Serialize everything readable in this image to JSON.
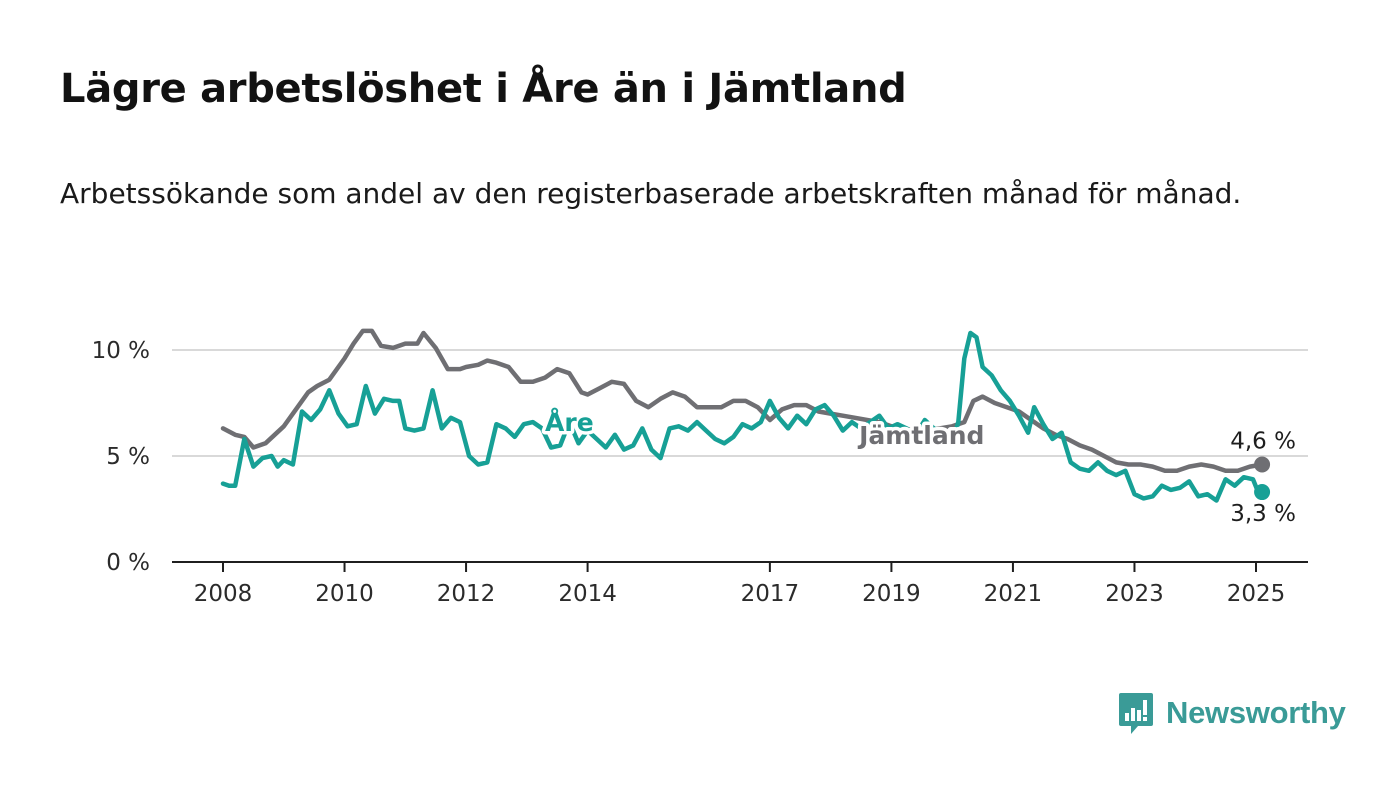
{
  "header": {
    "title": "Lägre arbetslöshet i Åre än i Jämtland",
    "subtitle": "Arbetssökande som andel av den registerbaserade arbetskraften månad för månad."
  },
  "brand": {
    "name": "Newsworthy",
    "icon": "newsworthy-logo-icon",
    "color": "#3a9b97"
  },
  "chart_data": {
    "type": "line",
    "ylim": [
      0,
      10
    ],
    "yticks": [
      0,
      5,
      10
    ],
    "ytick_labels": [
      "0 %",
      "5 %",
      "10 %"
    ],
    "xticks": [
      2008,
      2010,
      2012,
      2014,
      2017,
      2019,
      2021,
      2023,
      2025
    ],
    "xtick_labels": [
      "2008",
      "2010",
      "2012",
      "2014",
      "2017",
      "2019",
      "2021",
      "2023",
      "2025"
    ],
    "grid": true,
    "series": [
      {
        "name": "Jämtland",
        "color": "#6f6f73",
        "end_label": "4,6 %",
        "points": [
          [
            2008.0,
            6.3
          ],
          [
            2008.2,
            6.0
          ],
          [
            2008.35,
            5.9
          ],
          [
            2008.5,
            5.4
          ],
          [
            2008.7,
            5.6
          ],
          [
            2009.0,
            6.4
          ],
          [
            2009.2,
            7.2
          ],
          [
            2009.4,
            8.0
          ],
          [
            2009.55,
            8.3
          ],
          [
            2009.75,
            8.6
          ],
          [
            2010.0,
            9.6
          ],
          [
            2010.15,
            10.3
          ],
          [
            2010.3,
            10.9
          ],
          [
            2010.45,
            10.9
          ],
          [
            2010.6,
            10.2
          ],
          [
            2010.8,
            10.1
          ],
          [
            2011.0,
            10.3
          ],
          [
            2011.2,
            10.3
          ],
          [
            2011.3,
            10.8
          ],
          [
            2011.5,
            10.1
          ],
          [
            2011.7,
            9.1
          ],
          [
            2011.9,
            9.1
          ],
          [
            2012.0,
            9.2
          ],
          [
            2012.2,
            9.3
          ],
          [
            2012.35,
            9.5
          ],
          [
            2012.5,
            9.4
          ],
          [
            2012.7,
            9.2
          ],
          [
            2012.9,
            8.5
          ],
          [
            2013.1,
            8.5
          ],
          [
            2013.3,
            8.7
          ],
          [
            2013.5,
            9.1
          ],
          [
            2013.7,
            8.9
          ],
          [
            2013.9,
            8.0
          ],
          [
            2014.0,
            7.9
          ],
          [
            2014.2,
            8.2
          ],
          [
            2014.4,
            8.5
          ],
          [
            2014.6,
            8.4
          ],
          [
            2014.8,
            7.6
          ],
          [
            2015.0,
            7.3
          ],
          [
            2015.2,
            7.7
          ],
          [
            2015.4,
            8.0
          ],
          [
            2015.6,
            7.8
          ],
          [
            2015.8,
            7.3
          ],
          [
            2016.0,
            7.3
          ],
          [
            2016.2,
            7.3
          ],
          [
            2016.4,
            7.6
          ],
          [
            2016.6,
            7.6
          ],
          [
            2016.8,
            7.3
          ],
          [
            2017.0,
            6.7
          ],
          [
            2017.2,
            7.2
          ],
          [
            2017.4,
            7.4
          ],
          [
            2017.6,
            7.4
          ],
          [
            2017.8,
            7.1
          ],
          [
            2018.0,
            7.0
          ],
          [
            2018.2,
            6.9
          ],
          [
            2018.4,
            6.8
          ],
          [
            2018.6,
            6.7
          ],
          [
            2018.8,
            6.6
          ],
          [
            2019.0,
            6.4
          ],
          [
            2019.2,
            6.3
          ],
          [
            2019.4,
            6.2
          ],
          [
            2019.6,
            6.2
          ],
          [
            2019.8,
            6.3
          ],
          [
            2020.0,
            6.4
          ],
          [
            2020.2,
            6.6
          ],
          [
            2020.35,
            7.6
          ],
          [
            2020.5,
            7.8
          ],
          [
            2020.7,
            7.5
          ],
          [
            2020.9,
            7.3
          ],
          [
            2021.1,
            7.1
          ],
          [
            2021.3,
            6.7
          ],
          [
            2021.5,
            6.3
          ],
          [
            2021.7,
            6.0
          ],
          [
            2021.9,
            5.8
          ],
          [
            2022.1,
            5.5
          ],
          [
            2022.3,
            5.3
          ],
          [
            2022.5,
            5.0
          ],
          [
            2022.7,
            4.7
          ],
          [
            2022.9,
            4.6
          ],
          [
            2023.1,
            4.6
          ],
          [
            2023.3,
            4.5
          ],
          [
            2023.5,
            4.3
          ],
          [
            2023.7,
            4.3
          ],
          [
            2023.9,
            4.5
          ],
          [
            2024.1,
            4.6
          ],
          [
            2024.3,
            4.5
          ],
          [
            2024.5,
            4.3
          ],
          [
            2024.7,
            4.3
          ],
          [
            2024.9,
            4.5
          ],
          [
            2025.1,
            4.6
          ]
        ]
      },
      {
        "name": "Åre",
        "color": "#17a096",
        "end_label": "3,3 %",
        "points": [
          [
            2008.0,
            3.7
          ],
          [
            2008.1,
            3.6
          ],
          [
            2008.2,
            3.6
          ],
          [
            2008.35,
            5.8
          ],
          [
            2008.5,
            4.5
          ],
          [
            2008.65,
            4.9
          ],
          [
            2008.8,
            5.0
          ],
          [
            2008.9,
            4.5
          ],
          [
            2009.0,
            4.8
          ],
          [
            2009.15,
            4.6
          ],
          [
            2009.3,
            7.1
          ],
          [
            2009.45,
            6.7
          ],
          [
            2009.6,
            7.2
          ],
          [
            2009.75,
            8.1
          ],
          [
            2009.9,
            7.0
          ],
          [
            2010.05,
            6.4
          ],
          [
            2010.2,
            6.5
          ],
          [
            2010.35,
            8.3
          ],
          [
            2010.5,
            7.0
          ],
          [
            2010.65,
            7.7
          ],
          [
            2010.8,
            7.6
          ],
          [
            2010.9,
            7.6
          ],
          [
            2011.0,
            6.3
          ],
          [
            2011.15,
            6.2
          ],
          [
            2011.3,
            6.3
          ],
          [
            2011.45,
            8.1
          ],
          [
            2011.6,
            6.3
          ],
          [
            2011.75,
            6.8
          ],
          [
            2011.9,
            6.6
          ],
          [
            2012.05,
            5.0
          ],
          [
            2012.2,
            4.6
          ],
          [
            2012.35,
            4.7
          ],
          [
            2012.5,
            6.5
          ],
          [
            2012.65,
            6.3
          ],
          [
            2012.8,
            5.9
          ],
          [
            2012.95,
            6.5
          ],
          [
            2013.1,
            6.6
          ],
          [
            2013.25,
            6.3
          ],
          [
            2013.4,
            5.4
          ],
          [
            2013.55,
            5.5
          ],
          [
            2013.7,
            6.6
          ],
          [
            2013.85,
            5.6
          ],
          [
            2014.0,
            6.2
          ],
          [
            2014.15,
            5.8
          ],
          [
            2014.3,
            5.4
          ],
          [
            2014.45,
            6.0
          ],
          [
            2014.6,
            5.3
          ],
          [
            2014.75,
            5.5
          ],
          [
            2014.9,
            6.3
          ],
          [
            2015.05,
            5.3
          ],
          [
            2015.2,
            4.9
          ],
          [
            2015.35,
            6.3
          ],
          [
            2015.5,
            6.4
          ],
          [
            2015.65,
            6.2
          ],
          [
            2015.8,
            6.6
          ],
          [
            2015.95,
            6.2
          ],
          [
            2016.1,
            5.8
          ],
          [
            2016.25,
            5.6
          ],
          [
            2016.4,
            5.9
          ],
          [
            2016.55,
            6.5
          ],
          [
            2016.7,
            6.3
          ],
          [
            2016.85,
            6.6
          ],
          [
            2017.0,
            7.6
          ],
          [
            2017.15,
            6.8
          ],
          [
            2017.3,
            6.3
          ],
          [
            2017.45,
            6.9
          ],
          [
            2017.6,
            6.5
          ],
          [
            2017.75,
            7.2
          ],
          [
            2017.9,
            7.4
          ],
          [
            2018.05,
            6.9
          ],
          [
            2018.2,
            6.2
          ],
          [
            2018.35,
            6.6
          ],
          [
            2018.5,
            6.3
          ],
          [
            2018.65,
            6.6
          ],
          [
            2018.8,
            6.9
          ],
          [
            2018.95,
            6.3
          ],
          [
            2019.1,
            6.5
          ],
          [
            2019.25,
            6.3
          ],
          [
            2019.4,
            6.0
          ],
          [
            2019.55,
            6.7
          ],
          [
            2019.7,
            6.3
          ],
          [
            2019.85,
            6.1
          ],
          [
            2020.0,
            5.6
          ],
          [
            2020.1,
            6.6
          ],
          [
            2020.2,
            9.6
          ],
          [
            2020.3,
            10.8
          ],
          [
            2020.4,
            10.6
          ],
          [
            2020.5,
            9.2
          ],
          [
            2020.65,
            8.8
          ],
          [
            2020.8,
            8.1
          ],
          [
            2020.95,
            7.6
          ],
          [
            2021.1,
            6.9
          ],
          [
            2021.25,
            6.1
          ],
          [
            2021.35,
            7.3
          ],
          [
            2021.5,
            6.5
          ],
          [
            2021.65,
            5.8
          ],
          [
            2021.8,
            6.1
          ],
          [
            2021.95,
            4.7
          ],
          [
            2022.1,
            4.4
          ],
          [
            2022.25,
            4.3
          ],
          [
            2022.4,
            4.7
          ],
          [
            2022.55,
            4.3
          ],
          [
            2022.7,
            4.1
          ],
          [
            2022.85,
            4.3
          ],
          [
            2023.0,
            3.2
          ],
          [
            2023.15,
            3.0
          ],
          [
            2023.3,
            3.1
          ],
          [
            2023.45,
            3.6
          ],
          [
            2023.6,
            3.4
          ],
          [
            2023.75,
            3.5
          ],
          [
            2023.9,
            3.8
          ],
          [
            2024.05,
            3.1
          ],
          [
            2024.2,
            3.2
          ],
          [
            2024.35,
            2.9
          ],
          [
            2024.5,
            3.9
          ],
          [
            2024.65,
            3.6
          ],
          [
            2024.8,
            4.0
          ],
          [
            2024.95,
            3.9
          ],
          [
            2025.05,
            3.2
          ],
          [
            2025.1,
            3.3
          ]
        ]
      }
    ]
  }
}
